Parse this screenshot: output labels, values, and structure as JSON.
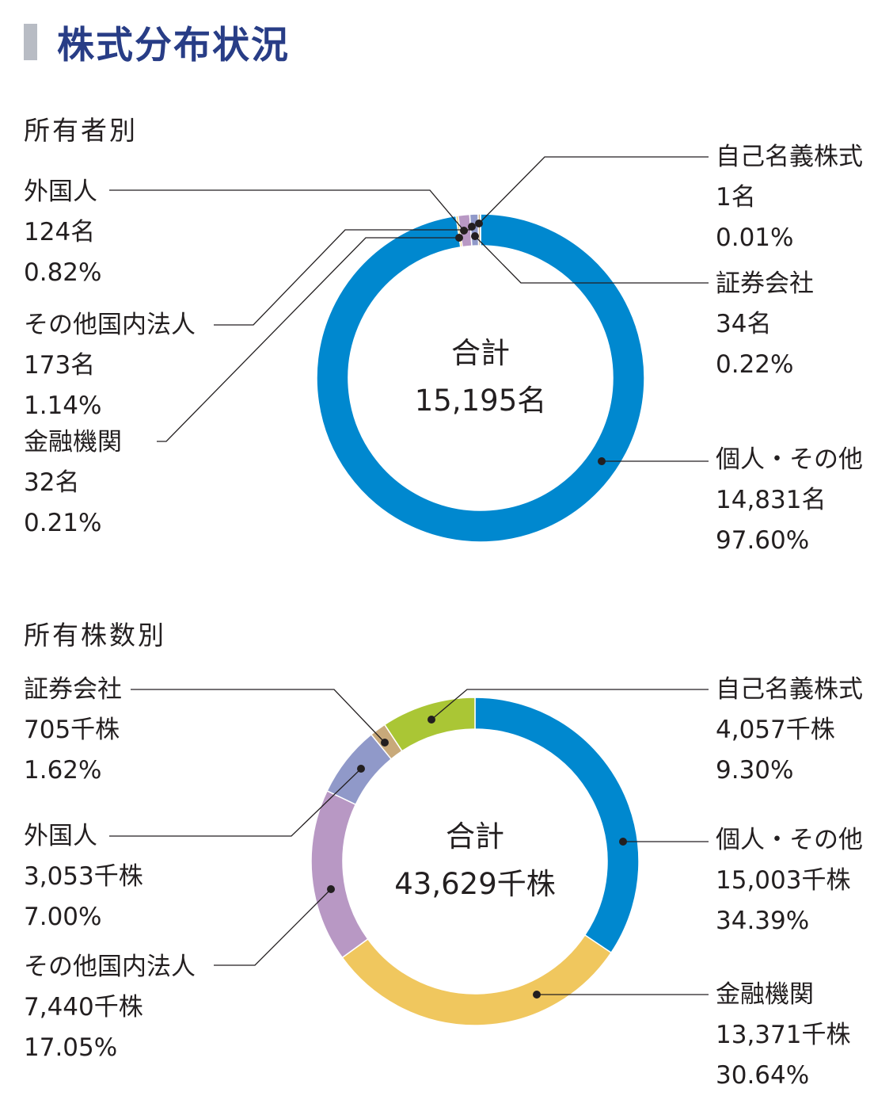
{
  "header": {
    "title": "株式分布状況"
  },
  "chart_data": [
    {
      "type": "pie",
      "section_title": "所有者別",
      "center": {
        "label": "合計",
        "value": "15,195名"
      },
      "series": [
        {
          "name": "個人・その他",
          "count": "14,831名",
          "percent": "97.60%",
          "value": 97.6,
          "color": "#0088cf"
        },
        {
          "name": "金融機関",
          "count": "32名",
          "percent": "0.21%",
          "value": 0.21,
          "color": "#f0c75e"
        },
        {
          "name": "その他国内法人",
          "count": "173名",
          "percent": "1.14%",
          "value": 1.14,
          "color": "#b898c4"
        },
        {
          "name": "外国人",
          "count": "124名",
          "percent": "0.82%",
          "value": 0.82,
          "color": "#9099c9"
        },
        {
          "name": "証券会社",
          "count": "34名",
          "percent": "0.22%",
          "value": 0.22,
          "color": "#c8a97a"
        },
        {
          "name": "自己名義株式",
          "count": "1名",
          "percent": "0.01%",
          "value": 0.01,
          "color": "#aac635"
        }
      ]
    },
    {
      "type": "pie",
      "section_title": "所有株数別",
      "center": {
        "label": "合計",
        "value": "43,629千株"
      },
      "series": [
        {
          "name": "個人・その他",
          "count": "15,003千株",
          "percent": "34.39%",
          "value": 34.39,
          "color": "#0088cf"
        },
        {
          "name": "金融機関",
          "count": "13,371千株",
          "percent": "30.64%",
          "value": 30.64,
          "color": "#f0c75e"
        },
        {
          "name": "その他国内法人",
          "count": "7,440千株",
          "percent": "17.05%",
          "value": 17.05,
          "color": "#b898c4"
        },
        {
          "name": "外国人",
          "count": "3,053千株",
          "percent": "7.00%",
          "value": 7.0,
          "color": "#9099c9"
        },
        {
          "name": "証券会社",
          "count": "705千株",
          "percent": "1.62%",
          "value": 1.62,
          "color": "#c8a97a"
        },
        {
          "name": "自己名義株式",
          "count": "4,057千株",
          "percent": "9.30%",
          "value": 9.3,
          "color": "#aac635"
        }
      ]
    }
  ]
}
